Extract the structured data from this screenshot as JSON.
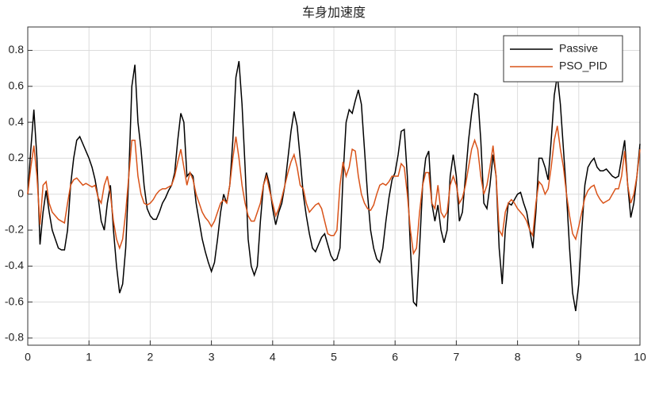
{
  "chart_data": {
    "type": "line",
    "title": "车身加速度",
    "x": [
      0,
      0.05,
      0.1,
      0.15,
      0.2,
      0.25,
      0.3,
      0.35,
      0.4,
      0.45,
      0.5,
      0.55,
      0.6,
      0.65,
      0.7,
      0.75,
      0.8,
      0.85,
      0.9,
      0.95,
      1,
      1.05,
      1.1,
      1.15,
      1.2,
      1.25,
      1.3,
      1.35,
      1.4,
      1.45,
      1.5,
      1.55,
      1.6,
      1.65,
      1.7,
      1.75,
      1.8,
      1.85,
      1.9,
      1.95,
      2,
      2.05,
      2.1,
      2.15,
      2.2,
      2.25,
      2.3,
      2.35,
      2.4,
      2.45,
      2.5,
      2.55,
      2.6,
      2.65,
      2.7,
      2.75,
      2.8,
      2.85,
      2.9,
      2.95,
      3,
      3.05,
      3.1,
      3.15,
      3.2,
      3.25,
      3.3,
      3.35,
      3.4,
      3.45,
      3.5,
      3.55,
      3.6,
      3.65,
      3.7,
      3.75,
      3.8,
      3.85,
      3.9,
      3.95,
      4,
      4.05,
      4.1,
      4.15,
      4.2,
      4.25,
      4.3,
      4.35,
      4.4,
      4.45,
      4.5,
      4.55,
      4.6,
      4.65,
      4.7,
      4.75,
      4.8,
      4.85,
      4.9,
      4.95,
      5,
      5.05,
      5.1,
      5.15,
      5.2,
      5.25,
      5.3,
      5.35,
      5.4,
      5.45,
      5.5,
      5.55,
      5.6,
      5.65,
      5.7,
      5.75,
      5.8,
      5.85,
      5.9,
      5.95,
      6,
      6.05,
      6.1,
      6.15,
      6.2,
      6.25,
      6.3,
      6.35,
      6.4,
      6.45,
      6.5,
      6.55,
      6.6,
      6.65,
      6.7,
      6.75,
      6.8,
      6.85,
      6.9,
      6.95,
      7,
      7.05,
      7.1,
      7.15,
      7.2,
      7.25,
      7.3,
      7.35,
      7.4,
      7.45,
      7.5,
      7.55,
      7.6,
      7.65,
      7.7,
      7.75,
      7.8,
      7.85,
      7.9,
      7.95,
      8,
      8.05,
      8.1,
      8.15,
      8.2,
      8.25,
      8.3,
      8.35,
      8.4,
      8.45,
      8.5,
      8.55,
      8.6,
      8.65,
      8.7,
      8.75,
      8.8,
      8.85,
      8.9,
      8.95,
      9,
      9.05,
      9.1,
      9.15,
      9.2,
      9.25,
      9.3,
      9.35,
      9.4,
      9.45,
      9.5,
      9.55,
      9.6,
      9.65,
      9.7,
      9.75,
      9.8,
      9.85,
      9.9,
      9.95,
      10
    ],
    "series": [
      {
        "name": "Passive",
        "color": "#000000",
        "values": [
          0,
          0.25,
          0.47,
          0.2,
          -0.28,
          -0.1,
          0.02,
          -0.1,
          -0.2,
          -0.25,
          -0.3,
          -0.31,
          -0.31,
          -0.2,
          0.05,
          0.2,
          0.3,
          0.32,
          0.28,
          0.24,
          0.2,
          0.15,
          0.08,
          -0.02,
          -0.15,
          -0.2,
          -0.05,
          0.05,
          -0.2,
          -0.4,
          -0.55,
          -0.5,
          -0.3,
          0.1,
          0.6,
          0.72,
          0.4,
          0.25,
          0.05,
          -0.08,
          -0.12,
          -0.14,
          -0.14,
          -0.1,
          -0.05,
          -0.02,
          0.02,
          0.05,
          0.12,
          0.3,
          0.45,
          0.4,
          0.1,
          0.12,
          0.1,
          -0.05,
          -0.15,
          -0.25,
          -0.32,
          -0.38,
          -0.43,
          -0.38,
          -0.25,
          -0.1,
          0,
          -0.05,
          0.05,
          0.3,
          0.65,
          0.74,
          0.5,
          0.15,
          -0.25,
          -0.4,
          -0.45,
          -0.4,
          -0.15,
          0.05,
          0.12,
          0.05,
          -0.08,
          -0.17,
          -0.1,
          -0.05,
          0.05,
          0.2,
          0.35,
          0.46,
          0.38,
          0.2,
          0,
          -0.12,
          -0.22,
          -0.3,
          -0.32,
          -0.28,
          -0.24,
          -0.22,
          -0.28,
          -0.34,
          -0.37,
          -0.36,
          -0.3,
          0.1,
          0.4,
          0.47,
          0.45,
          0.52,
          0.58,
          0.5,
          0.25,
          0,
          -0.2,
          -0.3,
          -0.36,
          -0.38,
          -0.3,
          -0.15,
          -0.02,
          0.08,
          0.12,
          0.22,
          0.35,
          0.36,
          0.1,
          -0.3,
          -0.6,
          -0.62,
          -0.3,
          0.05,
          0.2,
          0.24,
          -0.05,
          -0.15,
          -0.06,
          -0.2,
          -0.27,
          -0.2,
          0.1,
          0.22,
          0.1,
          -0.15,
          -0.1,
          0.1,
          0.3,
          0.45,
          0.56,
          0.55,
          0.3,
          -0.05,
          -0.08,
          0.05,
          0.22,
          0.1,
          -0.3,
          -0.5,
          -0.2,
          -0.05,
          -0.06,
          -0.03,
          0,
          0.01,
          -0.05,
          -0.1,
          -0.2,
          -0.3,
          -0.1,
          0.2,
          0.2,
          0.15,
          0.08,
          0.3,
          0.55,
          0.66,
          0.5,
          0.25,
          0,
          -0.3,
          -0.55,
          -0.65,
          -0.5,
          -0.2,
          0.05,
          0.15,
          0.18,
          0.2,
          0.15,
          0.13,
          0.13,
          0.14,
          0.12,
          0.1,
          0.09,
          0.1,
          0.2,
          0.3,
          0.05,
          -0.13,
          -0.05,
          0.1,
          0.28
        ]
      },
      {
        "name": "PSO_PID",
        "color": "#d95319",
        "values": [
          0,
          0.15,
          0.27,
          0.1,
          -0.17,
          0.05,
          0.07,
          -0.05,
          -0.1,
          -0.12,
          -0.14,
          -0.15,
          -0.16,
          -0.05,
          0.05,
          0.08,
          0.09,
          0.07,
          0.05,
          0.06,
          0.05,
          0.04,
          0.05,
          -0.02,
          -0.05,
          0.05,
          0.1,
          0,
          -0.15,
          -0.25,
          -0.3,
          -0.25,
          -0.1,
          0.1,
          0.3,
          0.3,
          0.1,
          0,
          -0.05,
          -0.06,
          -0.05,
          -0.03,
          0,
          0.02,
          0.03,
          0.03,
          0.04,
          0.05,
          0.1,
          0.18,
          0.25,
          0.15,
          0.05,
          0.12,
          0.08,
          0,
          -0.05,
          -0.1,
          -0.13,
          -0.15,
          -0.18,
          -0.15,
          -0.1,
          -0.05,
          -0.03,
          -0.05,
          0.05,
          0.2,
          0.32,
          0.2,
          0.05,
          -0.05,
          -0.12,
          -0.15,
          -0.15,
          -0.1,
          -0.05,
          0.05,
          0.1,
          0.02,
          -0.05,
          -0.12,
          -0.08,
          -0.02,
          0.05,
          0.12,
          0.18,
          0.22,
          0.15,
          0.05,
          0.03,
          -0.05,
          -0.1,
          -0.08,
          -0.06,
          -0.05,
          -0.08,
          -0.15,
          -0.22,
          -0.23,
          -0.23,
          -0.2,
          0.05,
          0.18,
          0.1,
          0.15,
          0.25,
          0.24,
          0.1,
          0,
          -0.05,
          -0.08,
          -0.09,
          -0.06,
          0,
          0.05,
          0.06,
          0.05,
          0.07,
          0.1,
          0.1,
          0.1,
          0.17,
          0.15,
          0,
          -0.2,
          -0.33,
          -0.3,
          -0.1,
          0.05,
          0.12,
          0.12,
          -0.05,
          -0.08,
          0.05,
          -0.1,
          -0.13,
          -0.1,
          0.05,
          0.1,
          0.05,
          -0.05,
          -0.02,
          0.05,
          0.15,
          0.25,
          0.3,
          0.25,
          0.1,
          0,
          0.05,
          0.15,
          0.27,
          0.1,
          -0.2,
          -0.23,
          -0.1,
          -0.05,
          -0.03,
          -0.05,
          -0.08,
          -0.1,
          -0.12,
          -0.15,
          -0.2,
          -0.23,
          -0.05,
          0.07,
          0.05,
          0,
          0.03,
          0.15,
          0.3,
          0.38,
          0.25,
          0.15,
          0,
          -0.12,
          -0.22,
          -0.25,
          -0.18,
          -0.1,
          -0.02,
          0.02,
          0.04,
          0.05,
          0,
          -0.03,
          -0.05,
          -0.04,
          -0.03,
          0,
          0.03,
          0.03,
          0.1,
          0.24,
          0.05,
          -0.05,
          0,
          0.1,
          0.25
        ]
      }
    ],
    "xlim": [
      0,
      10
    ],
    "xticks": [
      0,
      1,
      2,
      3,
      4,
      5,
      6,
      7,
      8,
      9,
      10
    ],
    "ylim": [
      -0.84,
      0.93
    ],
    "yticks": [
      -0.8,
      -0.6,
      -0.4,
      -0.2,
      0,
      0.2,
      0.4,
      0.6,
      0.8
    ],
    "grid": true,
    "legend": "top-right"
  }
}
